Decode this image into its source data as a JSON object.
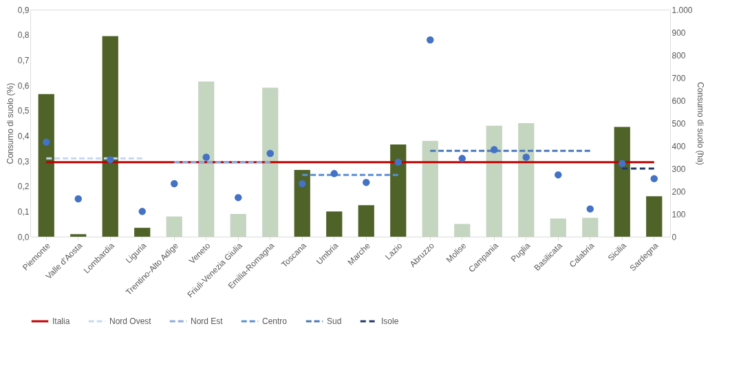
{
  "chart_data": {
    "type": "bar",
    "ylabel": "Consumo di suolo (%)",
    "y2label": "Consumo di suolo (ha)",
    "categories": [
      "Piemonte",
      "Valle d'Aosta",
      "Lombardia",
      "Liguria",
      "Trentino-Alto Adige",
      "Veneto",
      "Friuli-Venezia Giulia",
      "Emilia-Romagna",
      "Toscana",
      "Umbria",
      "Marche",
      "Lazio",
      "Abruzzo",
      "Molise",
      "Campania",
      "Puglia",
      "Basilicata",
      "Calabria",
      "Sicilia",
      "Sardegna"
    ],
    "ylim": [
      0,
      0.9
    ],
    "yticks": [
      {
        "value": 0,
        "label": "0,0"
      },
      {
        "value": 0.1,
        "label": "0,1"
      },
      {
        "value": 0.2,
        "label": "0,2"
      },
      {
        "value": 0.3,
        "label": "0,3"
      },
      {
        "value": 0.4,
        "label": "0,4"
      },
      {
        "value": 0.5,
        "label": "0,5"
      },
      {
        "value": 0.6,
        "label": "0,6"
      },
      {
        "value": 0.7,
        "label": "0,7"
      },
      {
        "value": 0.8,
        "label": "0,8"
      },
      {
        "value": 0.9,
        "label": "0,9"
      }
    ],
    "y2lim": [
      0,
      1000
    ],
    "y2ticks": [
      0,
      100,
      200,
      300,
      400,
      500,
      600,
      700,
      800,
      900,
      {
        "value": 1000,
        "label": "1.000"
      }
    ],
    "grid": false,
    "legend": "bottom",
    "series": [
      {
        "axis": "y2",
        "colors": [
          "#4f6228",
          "#4f6228",
          "#4f6228",
          "#4f6228",
          "#c4d5c0",
          "#c4d5c0",
          "#c4d5c0",
          "#c4d5c0",
          "#4f6228",
          "#4f6228",
          "#4f6228",
          "#4f6228",
          "#c4d5c0",
          "#c4d5c0",
          "#c4d5c0",
          "#c4d5c0",
          "#c4d5c0",
          "#c4d5c0",
          "#4f6228",
          "#4f6228"
        ],
        "values": [
          628,
          11,
          883,
          39,
          89,
          683,
          100,
          656,
          294,
          111,
          139,
          406,
          422,
          56,
          489,
          500,
          80,
          83,
          483,
          178
        ]
      },
      {
        "type": "line",
        "name": "Italia",
        "color": "#c00000",
        "line_style": "solid",
        "values": [
          0.295,
          0.295,
          0.295,
          0.295,
          0.295,
          0.295,
          0.295,
          0.295,
          0.295,
          0.295,
          0.295,
          0.295,
          0.295,
          0.295,
          0.295,
          0.295,
          0.295,
          0.295,
          0.295,
          0.295
        ]
      },
      {
        "type": "line",
        "name": "Nord Ovest",
        "color": "#c5d9f1",
        "line_style": "dashed",
        "values": [
          0.31,
          0.31,
          0.31,
          0.31,
          null,
          null,
          null,
          null,
          null,
          null,
          null,
          null,
          null,
          null,
          null,
          null,
          null,
          null,
          null,
          null
        ]
      },
      {
        "type": "line",
        "name": "Nord Est",
        "color": "#8eaadb",
        "line_style": "dashed",
        "values": [
          null,
          null,
          null,
          null,
          0.295,
          0.295,
          0.295,
          0.295,
          null,
          null,
          null,
          null,
          null,
          null,
          null,
          null,
          null,
          null,
          null,
          null
        ]
      },
      {
        "type": "line",
        "name": "Centro",
        "color": "#5b8fd4",
        "line_style": "dashed",
        "values": [
          null,
          null,
          null,
          null,
          null,
          null,
          null,
          null,
          0.245,
          0.245,
          0.245,
          0.245,
          null,
          null,
          null,
          null,
          null,
          null,
          null,
          null
        ]
      },
      {
        "type": "line",
        "name": "Sud",
        "color": "#4a78b8",
        "line_style": "dashed",
        "values": [
          null,
          null,
          null,
          null,
          null,
          null,
          null,
          null,
          null,
          null,
          null,
          null,
          0.34,
          0.34,
          0.34,
          0.34,
          0.34,
          0.34,
          null,
          null
        ]
      },
      {
        "type": "line",
        "name": "Isole",
        "color": "#1f3864",
        "line_style": "dashed",
        "values": [
          null,
          null,
          null,
          null,
          null,
          null,
          null,
          null,
          null,
          null,
          null,
          null,
          null,
          null,
          null,
          null,
          null,
          null,
          0.27,
          0.27
        ]
      },
      {
        "type": "scatter",
        "color": "#4472c4",
        "marker": "circle",
        "values": [
          0.375,
          0.15,
          0.305,
          0.1,
          0.21,
          0.315,
          0.155,
          0.33,
          0.21,
          0.25,
          0.215,
          0.295,
          0.78,
          0.31,
          0.345,
          0.315,
          0.245,
          0.11,
          0.29,
          0.23
        ]
      }
    ]
  }
}
